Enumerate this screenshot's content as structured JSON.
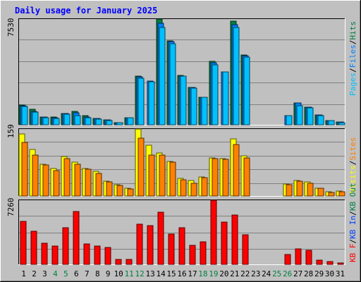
{
  "title": "Daily usage for January 2025",
  "colors": {
    "background": "#c0c0c0",
    "plot_background": "#c0c0c0",
    "grid": "#808080",
    "title": "#0000ff",
    "hits": "#008040",
    "files": "#0080ff",
    "pages": "#00c0ff",
    "visits": "#ffff00",
    "sites": "#ff8000",
    "kb_in": "#0040ff",
    "kb_out": "#008040",
    "kb_f": "#ff0000",
    "weekend_label": "#008040",
    "weekday_label": "#000000"
  },
  "chart_data": [
    {
      "type": "bar",
      "panel": "top",
      "ymax_label": "7530",
      "ylim": [
        0,
        7530
      ],
      "legend": [
        {
          "label": "Pages",
          "color": "#00c0ff"
        },
        {
          "label": "/",
          "color": "#000000"
        },
        {
          "label": "Files",
          "color": "#0080ff"
        },
        {
          "label": "/",
          "color": "#000000"
        },
        {
          "label": "Hits",
          "color": "#008040"
        }
      ],
      "categories": [
        "1",
        "2",
        "3",
        "4",
        "5",
        "6",
        "7",
        "8",
        "9",
        "10",
        "11",
        "12",
        "13",
        "14",
        "15",
        "16",
        "17",
        "18",
        "19",
        "20",
        "21",
        "22",
        "23",
        "24",
        "25",
        "26",
        "27",
        "28",
        "29",
        "30",
        "31"
      ],
      "weekend_days": [
        4,
        5,
        11,
        12,
        18,
        19,
        25,
        26
      ],
      "series": [
        {
          "name": "Hits",
          "color": "#008040",
          "values": [
            1400,
            1080,
            560,
            560,
            820,
            960,
            660,
            450,
            340,
            170,
            500,
            3480,
            0,
            7530,
            5950,
            3530,
            2660,
            1980,
            4520,
            0,
            7380,
            4960,
            0,
            0,
            0,
            0,
            1550,
            1280,
            680,
            300,
            190
          ]
        },
        {
          "name": "Files",
          "color": "#0080ff",
          "values": [
            1380,
            960,
            540,
            520,
            800,
            840,
            560,
            440,
            330,
            170,
            500,
            3400,
            3120,
            7220,
            5900,
            3480,
            2640,
            1980,
            4400,
            3760,
            7140,
            4900,
            0,
            0,
            0,
            660,
            1540,
            1260,
            680,
            300,
            180
          ]
        },
        {
          "name": "Pages",
          "color": "#00c0ff",
          "values": [
            1320,
            880,
            520,
            440,
            740,
            640,
            480,
            390,
            320,
            170,
            480,
            3300,
            3080,
            6940,
            5780,
            3440,
            2620,
            1960,
            4280,
            3740,
            6940,
            4820,
            0,
            0,
            0,
            660,
            1380,
            1200,
            640,
            300,
            170
          ]
        }
      ]
    },
    {
      "type": "bar",
      "panel": "middle",
      "ymax_label": "159",
      "ylim": [
        0,
        159
      ],
      "legend": [
        {
          "label": "Visits",
          "color": "#ffff00"
        },
        {
          "label": "/",
          "color": "#000000"
        },
        {
          "label": "Sites",
          "color": "#ff8000"
        }
      ],
      "categories": [
        "1",
        "2",
        "3",
        "4",
        "5",
        "6",
        "7",
        "8",
        "9",
        "10",
        "11",
        "12",
        "13",
        "14",
        "15",
        "16",
        "17",
        "18",
        "19",
        "20",
        "21",
        "22",
        "23",
        "24",
        "25",
        "26",
        "27",
        "28",
        "29",
        "30",
        "31"
      ],
      "series": [
        {
          "name": "Visits",
          "color": "#ffff00",
          "values": [
            148,
            110,
            75,
            66,
            94,
            80,
            66,
            58,
            35,
            26,
            18,
            159,
            120,
            102,
            82,
            42,
            37,
            46,
            91,
            88,
            136,
            95,
            0,
            0,
            0,
            29,
            37,
            34,
            18,
            10,
            12
          ]
        },
        {
          "name": "Sites",
          "color": "#ff8000",
          "values": [
            128,
            97,
            74,
            61,
            88,
            75,
            63,
            54,
            33,
            25,
            16,
            138,
            97,
            97,
            80,
            38,
            30,
            43,
            89,
            87,
            123,
            91,
            0,
            0,
            0,
            27,
            35,
            30,
            18,
            9,
            10
          ]
        }
      ]
    },
    {
      "type": "bar",
      "panel": "bottom",
      "ymax_label": "7260",
      "ylim": [
        0,
        7260
      ],
      "legend": [
        {
          "label": "KB F",
          "color": "#ff0000"
        },
        {
          "label": "/",
          "color": "#000000"
        },
        {
          "label": "KB In",
          "color": "#0040ff"
        },
        {
          "label": "/",
          "color": "#000000"
        },
        {
          "label": "KB Out",
          "color": "#008040"
        }
      ],
      "categories": [
        "1",
        "2",
        "3",
        "4",
        "5",
        "6",
        "7",
        "8",
        "9",
        "10",
        "11",
        "12",
        "13",
        "14",
        "15",
        "16",
        "17",
        "18",
        "19",
        "20",
        "21",
        "22",
        "23",
        "24",
        "25",
        "26",
        "27",
        "28",
        "29",
        "30",
        "31"
      ],
      "series": [
        {
          "name": "KB F",
          "color": "#ff0000",
          "values": [
            4830,
            3710,
            2380,
            2040,
            4140,
            6000,
            2300,
            2100,
            1940,
            580,
            580,
            4540,
            4360,
            5940,
            3410,
            4140,
            2140,
            2550,
            7260,
            4770,
            5600,
            3350,
            0,
            0,
            0,
            1150,
            1720,
            1610,
            490,
            340,
            150
          ]
        }
      ]
    }
  ]
}
